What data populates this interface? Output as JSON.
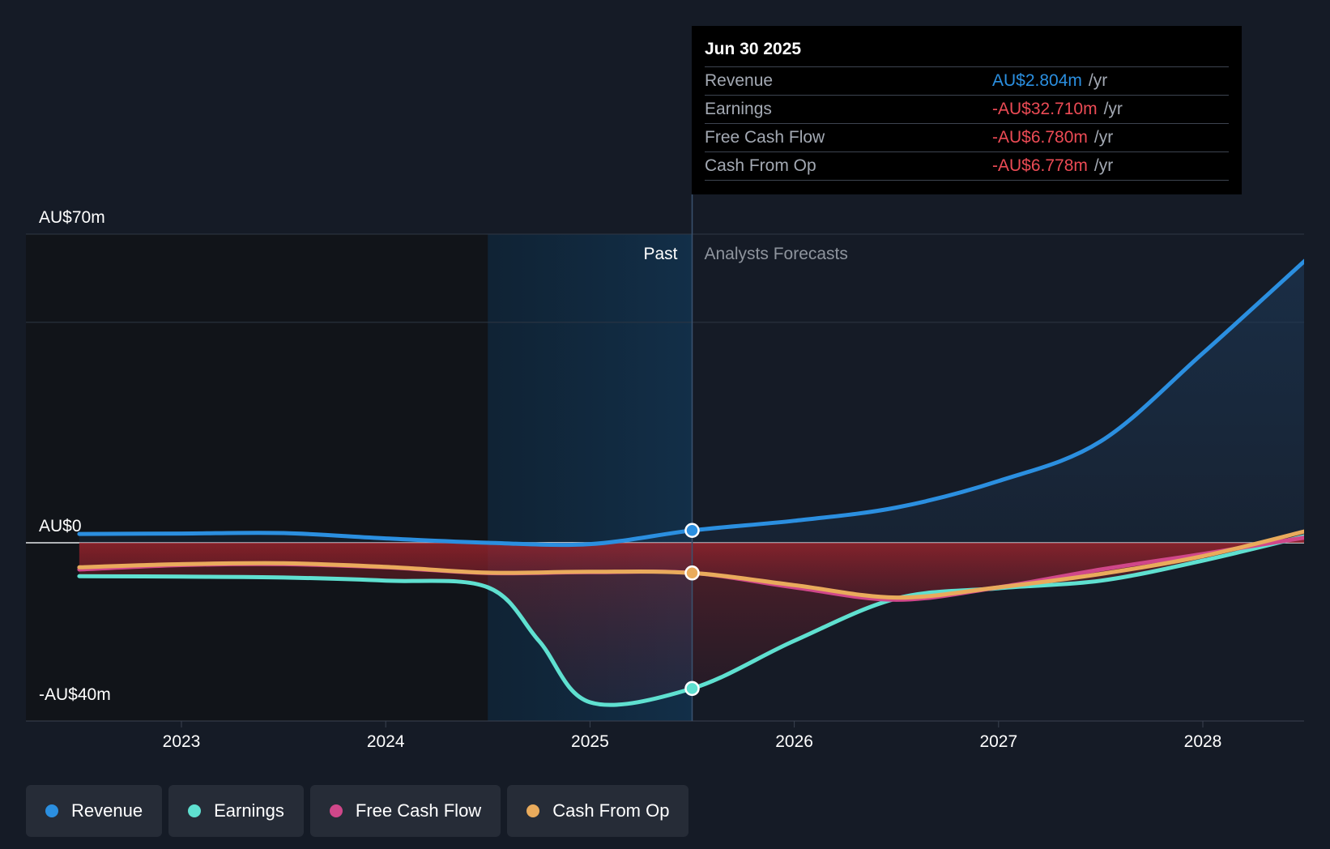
{
  "tooltip": {
    "date": "Jun 30 2025",
    "rows": [
      {
        "label": "Revenue",
        "value": "AU$2.804m",
        "unit": "/yr",
        "color": "#2b8fe0"
      },
      {
        "label": "Earnings",
        "value": "-AU$32.710m",
        "unit": "/yr",
        "color": "#ec4b55"
      },
      {
        "label": "Free Cash Flow",
        "value": "-AU$6.780m",
        "unit": "/yr",
        "color": "#ec4b55"
      },
      {
        "label": "Cash From Op",
        "value": "-AU$6.778m",
        "unit": "/yr",
        "color": "#ec4b55"
      }
    ]
  },
  "labels": {
    "past": "Past",
    "forecast": "Analysts Forecasts"
  },
  "legend": [
    {
      "label": "Revenue",
      "color": "#2b8fe0"
    },
    {
      "label": "Earnings",
      "color": "#5fe0d0"
    },
    {
      "label": "Free Cash Flow",
      "color": "#d0478a"
    },
    {
      "label": "Cash From Op",
      "color": "#e9ab5c"
    }
  ],
  "chart_data": {
    "type": "line",
    "y_tick_labels": [
      {
        "value": 70,
        "label": "AU$70m"
      },
      {
        "value": 0,
        "label": "AU$0"
      },
      {
        "value": -40,
        "label": "-AU$40m"
      }
    ],
    "ylim": [
      -40,
      70
    ],
    "x_tick_labels": [
      "2023",
      "2024",
      "2025",
      "2026",
      "2027",
      "2028"
    ],
    "xlim": [
      2022.5,
      2028.5
    ],
    "past_region": [
      2024.5,
      2025.5
    ],
    "series": [
      {
        "name": "Revenue",
        "color": "#2b8fe0",
        "x": [
          2022.5,
          2023.0,
          2023.5,
          2024.0,
          2024.5,
          2025.0,
          2025.5,
          2026.0,
          2026.5,
          2027.0,
          2027.5,
          2028.0,
          2028.5
        ],
        "y": [
          2.0,
          2.1,
          2.2,
          1.0,
          0.0,
          -0.3,
          2.8,
          5.0,
          8.0,
          14.0,
          23.0,
          43.0,
          64.0
        ]
      },
      {
        "name": "Earnings",
        "color": "#5fe0d0",
        "x": [
          2022.5,
          2023.0,
          2023.5,
          2024.0,
          2024.5,
          2024.75,
          2025.0,
          2025.5,
          2026.0,
          2026.5,
          2027.0,
          2027.5,
          2028.0,
          2028.5
        ],
        "y": [
          -7.5,
          -7.6,
          -7.8,
          -8.5,
          -10.0,
          -22.0,
          -35.8,
          -32.7,
          -22.0,
          -12.5,
          -10.2,
          -8.5,
          -4.0,
          1.5
        ]
      },
      {
        "name": "Free Cash Flow",
        "color": "#d0478a",
        "x": [
          2022.5,
          2023.0,
          2023.5,
          2024.0,
          2024.5,
          2025.0,
          2025.5,
          2026.0,
          2026.5,
          2027.0,
          2027.5,
          2028.0,
          2028.5
        ],
        "y": [
          -6.0,
          -5.0,
          -4.8,
          -5.5,
          -6.8,
          -6.6,
          -6.78,
          -10.0,
          -12.8,
          -10.0,
          -6.0,
          -2.5,
          1.2
        ]
      },
      {
        "name": "Cash From Op",
        "color": "#e9ab5c",
        "x": [
          2022.5,
          2023.0,
          2023.5,
          2024.0,
          2024.5,
          2025.0,
          2025.5,
          2026.0,
          2026.5,
          2027.0,
          2027.5,
          2028.0,
          2028.5
        ],
        "y": [
          -5.5,
          -4.8,
          -4.6,
          -5.4,
          -6.7,
          -6.5,
          -6.778,
          -9.5,
          -12.3,
          -10.0,
          -7.0,
          -3.0,
          2.6
        ]
      }
    ],
    "marker_x": 2025.5
  }
}
